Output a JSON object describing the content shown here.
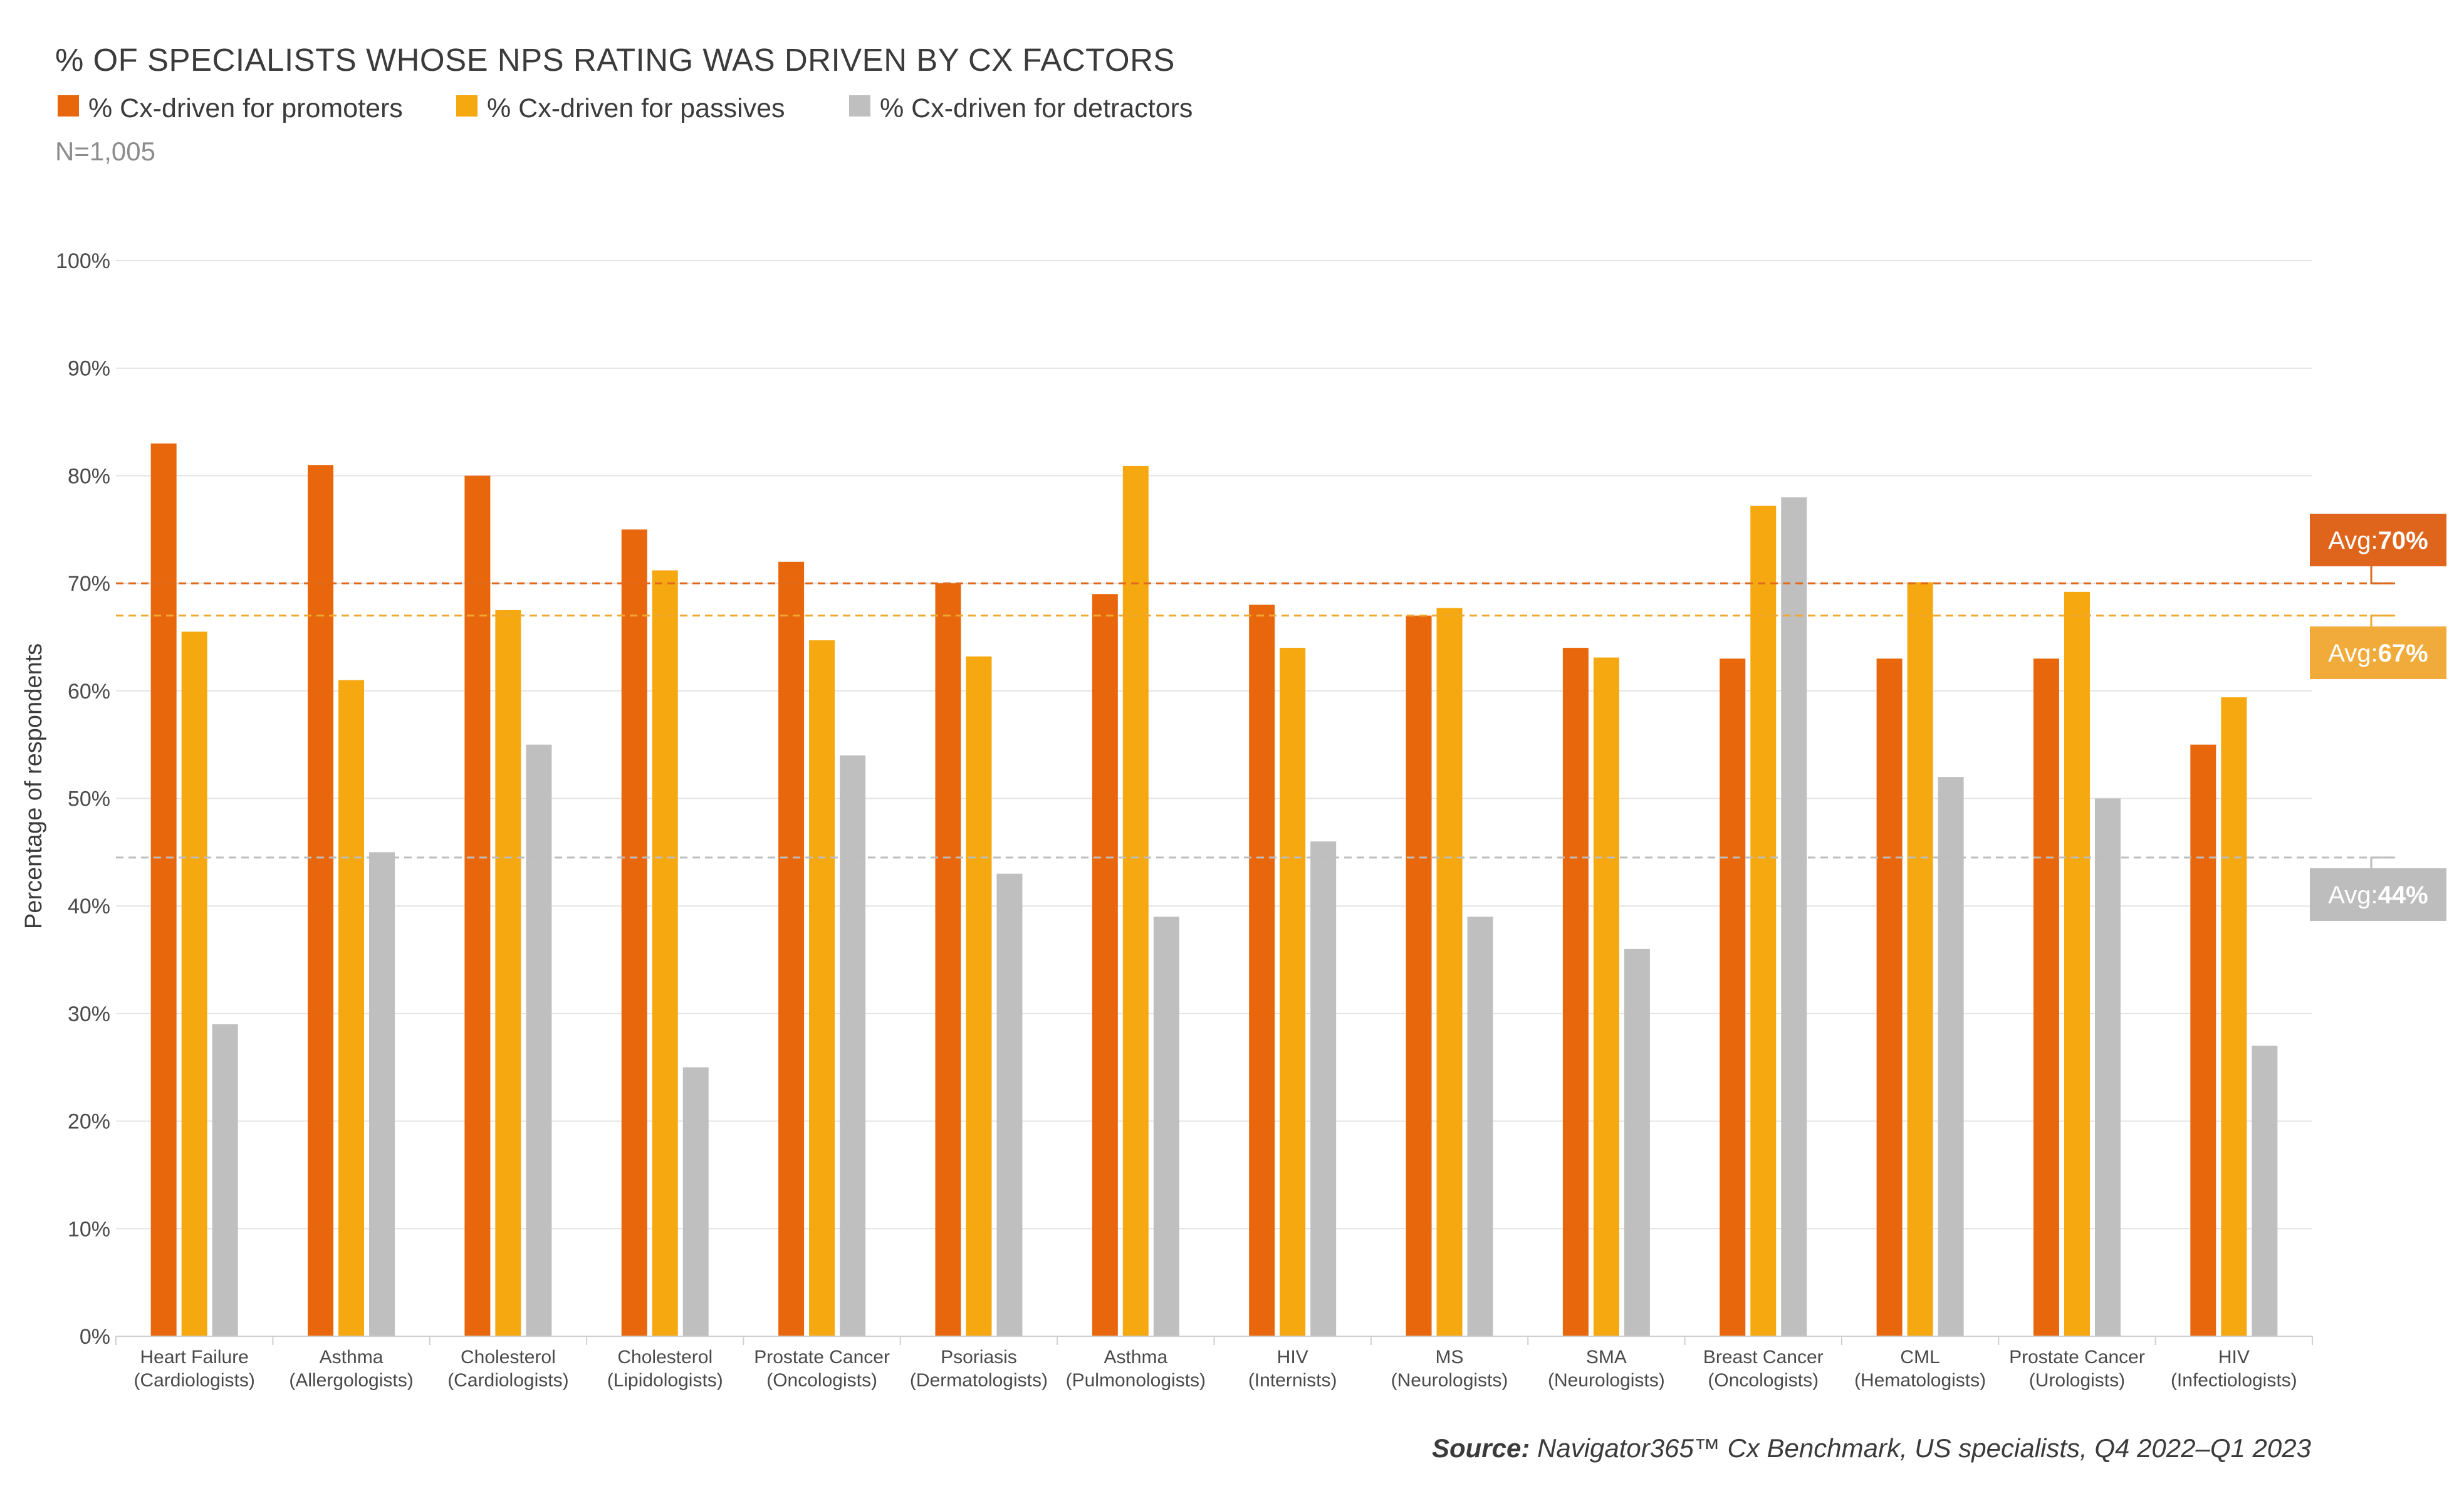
{
  "chart_data": {
    "type": "bar",
    "title": "% OF SPECIALISTS WHOSE NPS RATING WAS DRIVEN BY CX FACTORS",
    "note": "N=1,005",
    "ylabel": "Percentage of respondents",
    "xlabel": "",
    "ylim": [
      0,
      100
    ],
    "y_ticks": [
      0,
      10,
      20,
      30,
      40,
      50,
      60,
      70,
      80,
      90,
      100
    ],
    "y_tick_suffix": "%",
    "grid": true,
    "legend_position": "top-left",
    "categories": [
      [
        "Heart Failure",
        "(Cardiologists)"
      ],
      [
        "Asthma",
        "(Allergologists)"
      ],
      [
        "Cholesterol",
        "(Cardiologists)"
      ],
      [
        "Cholesterol",
        "(Lipidologists)"
      ],
      [
        "Prostate Cancer",
        "(Oncologists)"
      ],
      [
        "Psoriasis",
        "(Dermatologists)"
      ],
      [
        "Asthma",
        "(Pulmonologists)"
      ],
      [
        "HIV",
        "(Internists)"
      ],
      [
        "MS",
        "(Neurologists)"
      ],
      [
        "SMA",
        "(Neurologists)"
      ],
      [
        "Breast Cancer",
        "(Oncologists)"
      ],
      [
        "CML",
        "(Hematologists)"
      ],
      [
        "Prostate Cancer",
        "(Urologists)"
      ],
      [
        "HIV",
        "(Infectiologists)"
      ]
    ],
    "series": [
      {
        "name": "% Cx-driven for promoters",
        "color": "#E8670C",
        "values": [
          83,
          81,
          80,
          75,
          72,
          70,
          69,
          68,
          67,
          64,
          63,
          63,
          63,
          55
        ]
      },
      {
        "name": "% Cx-driven for passives",
        "color": "#F5A80F",
        "values": [
          65.5,
          61,
          67.5,
          71.2,
          64.7,
          63.2,
          80.9,
          64,
          67.7,
          63.1,
          77.2,
          70.1,
          69.2,
          59.4
        ]
      },
      {
        "name": "% Cx-driven for detractors",
        "color": "#BFBFBF",
        "values": [
          29,
          45,
          55,
          25,
          54,
          43,
          39,
          46,
          39,
          36,
          78,
          52,
          50,
          27
        ]
      }
    ],
    "averages": [
      {
        "prefix": "Avg:",
        "label": "70%",
        "value": 70,
        "color": "#E0651C",
        "line_color": "#E06A1C"
      },
      {
        "prefix": "Avg:",
        "label": "67%",
        "value": 67,
        "color": "#F0AB3A",
        "line_color": "#F0A830"
      },
      {
        "prefix": "Avg:",
        "label": "44%",
        "value": 44.5,
        "color": "#BDBDBD",
        "line_color": "#BDBDBD"
      }
    ]
  },
  "source": {
    "label": "Source:",
    "text": " Navigator365™ Cx Benchmark, US specialists, Q4 2022–Q1 2023"
  }
}
